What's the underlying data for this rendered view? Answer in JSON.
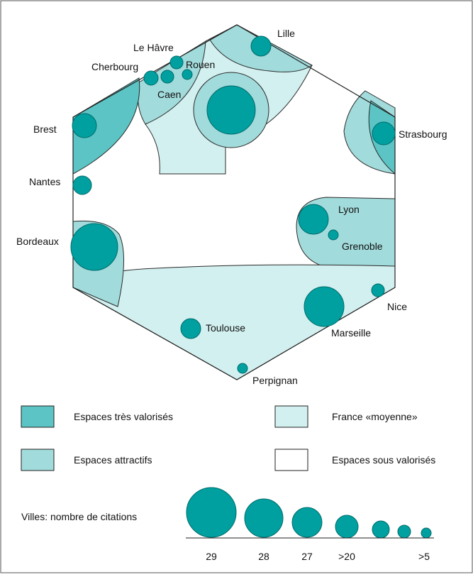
{
  "cities": [
    "Lille",
    "Le Hâvre",
    "Cherbourg",
    "Rouen",
    "Caen",
    "Brest",
    "Nantes",
    "Strasbourg",
    "Lyon",
    "Grenoble",
    "Bordeaux",
    "Nice",
    "Marseille",
    "Toulouse",
    "Perpignan"
  ],
  "legend": {
    "items": [
      "Espaces très valorisés",
      "France «moyenne»",
      "Espaces attractifs",
      "Espaces sous valorisés"
    ],
    "size_title": "Villes: nombre de citations",
    "size_labels": [
      "29",
      "28",
      "27",
      ">20",
      ">5"
    ]
  }
}
